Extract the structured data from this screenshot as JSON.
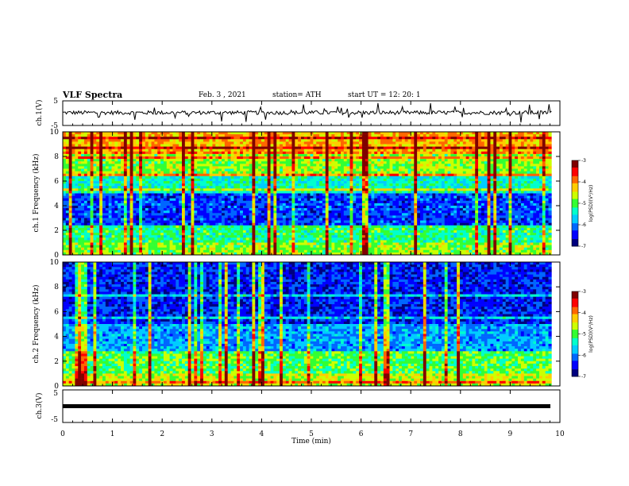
{
  "header": {
    "title": "VLF Spectra",
    "date": "Feb. 3 , 2021",
    "station": "station= ATH",
    "start": "start UT = 12: 20: 1"
  },
  "colors": {
    "colormap": [
      "#00007f",
      "#0000ff",
      "#0066ff",
      "#00ccff",
      "#00ffcc",
      "#33ff33",
      "#ccff00",
      "#ffcc00",
      "#ff6600",
      "#ff0000",
      "#800000"
    ],
    "trace": "#000000",
    "frame": "#000000"
  },
  "chart_data": [
    {
      "type": "line",
      "name": "ch1-waveform",
      "ylabel": "ch.1(V)",
      "ylim": [
        -5,
        5
      ],
      "yticks": [
        "5",
        "-5"
      ],
      "approx_level": 0.2,
      "approx_noise": 0.8
    },
    {
      "type": "heatmap",
      "name": "ch1-spectrogram",
      "ylabel": "ch.1 Frequency (kHz)",
      "ylim": [
        0,
        10
      ],
      "yticks": [
        "0",
        "2",
        "4",
        "6",
        "8",
        "10"
      ],
      "colorbar": {
        "label": "log(PSD)(V²/Hz)",
        "range": [
          -7,
          -3
        ],
        "ticks": [
          "-3",
          "-4",
          "-5",
          "-6",
          "-7"
        ]
      },
      "bands": [
        {
          "from": 0,
          "to": 1.0,
          "level": 0.55
        },
        {
          "from": 1.0,
          "to": 2.5,
          "level": 0.45
        },
        {
          "from": 2.5,
          "to": 5.0,
          "level": 0.18
        },
        {
          "from": 5.0,
          "to": 6.5,
          "level": 0.4
        },
        {
          "from": 6.5,
          "to": 8.5,
          "level": 0.55
        },
        {
          "from": 8.5,
          "to": 10,
          "level": 0.7
        }
      ]
    },
    {
      "type": "heatmap",
      "name": "ch2-spectrogram",
      "ylabel": "ch.2 Frequency (kHz)",
      "ylim": [
        0,
        10
      ],
      "yticks": [
        "0",
        "2",
        "4",
        "6",
        "8",
        "10"
      ],
      "colorbar": {
        "label": "log(PSD)(V²/Hz)",
        "range": [
          -7,
          -3
        ],
        "ticks": [
          "-3",
          "-4",
          "-5",
          "-6",
          "-7"
        ]
      },
      "bands": [
        {
          "from": 0,
          "to": 1.0,
          "level": 0.6
        },
        {
          "from": 1.0,
          "to": 2.8,
          "level": 0.5
        },
        {
          "from": 2.8,
          "to": 5.0,
          "level": 0.28
        },
        {
          "from": 5.0,
          "to": 10,
          "level": 0.15
        }
      ]
    },
    {
      "type": "line",
      "name": "ch3-waveform",
      "ylabel": "ch.3(V)",
      "ylim": [
        -5,
        5
      ],
      "yticks": [
        "5",
        "-5"
      ],
      "approx_level": 0.1,
      "approx_noise": 0.15
    }
  ],
  "xaxis": {
    "label": "Time (min)",
    "range": [
      0,
      10
    ],
    "ticks": [
      "0",
      "1",
      "2",
      "3",
      "4",
      "5",
      "6",
      "7",
      "8",
      "9",
      "10"
    ],
    "data_end": 9.83
  }
}
